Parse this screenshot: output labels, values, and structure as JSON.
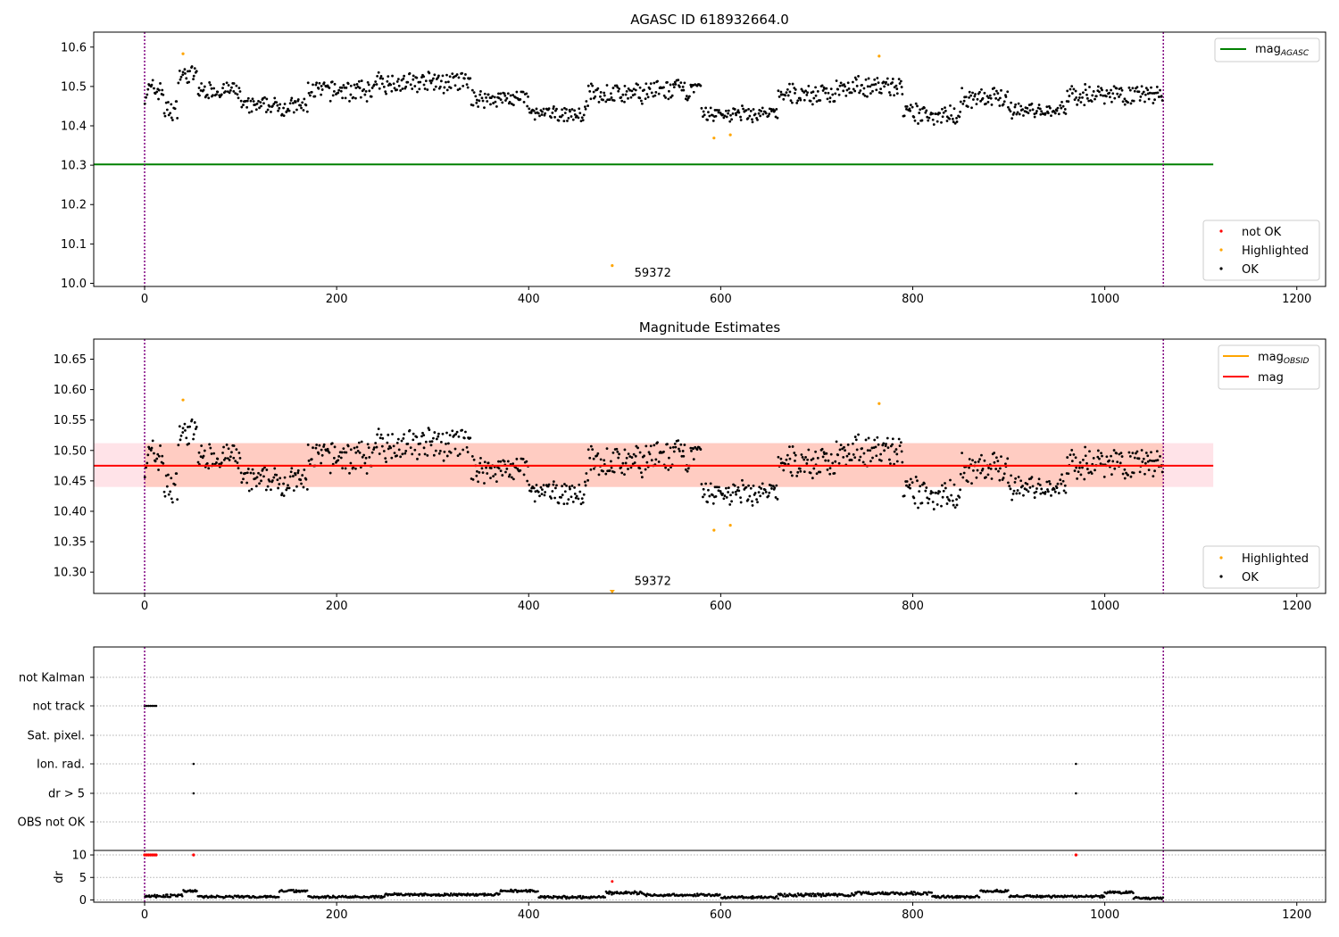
{
  "colors": {
    "ok": "#000000",
    "highlighted": "#ffa500",
    "not_ok": "#ff0000",
    "mag_agasc": "#008000",
    "mag_obsid": "#ffa500",
    "mag": "#ff0000",
    "band_outer": "#ffc0cb",
    "band_inner": "#ffa07a",
    "vline": "#800080",
    "grid": "#b0b0b0"
  },
  "chart_data": [
    {
      "type": "scatter",
      "title": "AGASC ID 618932664.0",
      "xlim": [
        -53,
        1230
      ],
      "ylim": [
        9.992,
        10.638
      ],
      "xticks": [
        0,
        200,
        400,
        600,
        800,
        1000,
        1200
      ],
      "yticks": [
        10.0,
        10.1,
        10.2,
        10.3,
        10.4,
        10.5,
        10.6
      ],
      "ytick_labels": [
        "10.0",
        "10.1",
        "10.2",
        "10.3",
        "10.4",
        "10.5",
        "10.6"
      ],
      "obsid_boundaries": [
        0,
        1061
      ],
      "mag_agasc": {
        "label": "mag",
        "subscript": "AGASC",
        "value": 10.302,
        "x_range": [
          -53,
          1113
        ]
      },
      "legend_top": {
        "position": "upper right",
        "entries": [
          {
            "label": "mag",
            "subscript": "AGASC",
            "kind": "line",
            "color": "#008000"
          }
        ]
      },
      "legend_bottom": {
        "position": "lower right",
        "entries": [
          {
            "label": "not OK",
            "kind": "dot",
            "color": "#ff0000"
          },
          {
            "label": "Highlighted",
            "kind": "dot",
            "color": "#ffa500"
          },
          {
            "label": "OK",
            "kind": "dot",
            "color": "#000000"
          }
        ]
      },
      "annotation": {
        "text": "59372",
        "x": 510,
        "y": 10.017
      },
      "highlighted_points": [
        [
          40,
          10.583
        ],
        [
          593,
          10.369
        ],
        [
          610,
          10.377
        ],
        [
          765,
          10.577
        ],
        [
          487,
          10.045
        ]
      ],
      "ok_segments": [
        {
          "x": [
            0,
            20
          ],
          "center": 10.49,
          "spread": 0.035
        },
        {
          "x": [
            20,
            35
          ],
          "center": 10.44,
          "spread": 0.03
        },
        {
          "x": [
            35,
            55
          ],
          "center": 10.53,
          "spread": 0.025
        },
        {
          "x": [
            55,
            100
          ],
          "center": 10.49,
          "spread": 0.025
        },
        {
          "x": [
            100,
            170
          ],
          "center": 10.45,
          "spread": 0.025
        },
        {
          "x": [
            170,
            240
          ],
          "center": 10.49,
          "spread": 0.03
        },
        {
          "x": [
            240,
            340
          ],
          "center": 10.51,
          "spread": 0.03
        },
        {
          "x": [
            340,
            400
          ],
          "center": 10.47,
          "spread": 0.025
        },
        {
          "x": [
            400,
            460
          ],
          "center": 10.43,
          "spread": 0.022
        },
        {
          "x": [
            460,
            520
          ],
          "center": 10.48,
          "spread": 0.03
        },
        {
          "x": [
            520,
            580
          ],
          "center": 10.49,
          "spread": 0.03
        },
        {
          "x": [
            580,
            660
          ],
          "center": 10.43,
          "spread": 0.022
        },
        {
          "x": [
            660,
            720
          ],
          "center": 10.48,
          "spread": 0.03
        },
        {
          "x": [
            720,
            790
          ],
          "center": 10.5,
          "spread": 0.03
        },
        {
          "x": [
            790,
            850
          ],
          "center": 10.43,
          "spread": 0.03
        },
        {
          "x": [
            850,
            900
          ],
          "center": 10.47,
          "spread": 0.03
        },
        {
          "x": [
            900,
            960
          ],
          "center": 10.44,
          "spread": 0.022
        },
        {
          "x": [
            960,
            1061
          ],
          "center": 10.48,
          "spread": 0.03
        }
      ]
    },
    {
      "type": "scatter",
      "title": "Magnitude Estimates",
      "xlim": [
        -53,
        1230
      ],
      "ylim": [
        10.265,
        10.683
      ],
      "xticks": [
        0,
        200,
        400,
        600,
        800,
        1000,
        1200
      ],
      "yticks": [
        10.3,
        10.35,
        10.4,
        10.45,
        10.5,
        10.55,
        10.6,
        10.65
      ],
      "ytick_labels": [
        "10.30",
        "10.35",
        "10.40",
        "10.45",
        "10.50",
        "10.55",
        "10.60",
        "10.65"
      ],
      "obsid_boundaries": [
        0,
        1061
      ],
      "mag": {
        "label": "mag",
        "value": 10.475,
        "band": [
          10.44,
          10.512
        ],
        "x_range": [
          -53,
          1113
        ]
      },
      "mag_obsid": {
        "label": "mag",
        "subscript": "OBSID",
        "value": 10.475,
        "band": [
          10.44,
          10.512
        ],
        "x_range": [
          0,
          1061
        ]
      },
      "legend_top": {
        "position": "upper right",
        "entries": [
          {
            "label": "mag",
            "subscript": "OBSID",
            "kind": "line",
            "color": "#ffa500"
          },
          {
            "label": "mag",
            "kind": "line",
            "color": "#ff0000"
          }
        ]
      },
      "legend_bottom": {
        "position": "lower right",
        "entries": [
          {
            "label": "Highlighted",
            "kind": "dot",
            "color": "#ffa500"
          },
          {
            "label": "OK",
            "kind": "dot",
            "color": "#000000"
          }
        ]
      },
      "annotation": {
        "text": "59372",
        "x": 510,
        "y": 10.279
      },
      "highlighted_points": [
        [
          40,
          10.583
        ],
        [
          593,
          10.369
        ],
        [
          610,
          10.377
        ],
        [
          765,
          10.577
        ]
      ],
      "clipped_point": [
        487,
        10.265
      ]
    },
    {
      "type": "scatter",
      "title": "",
      "xlim": [
        -53,
        1230
      ],
      "xticks": [
        0,
        200,
        400,
        600,
        800,
        1000,
        1200
      ],
      "obsid_boundaries": [
        0,
        1061
      ],
      "flag_rows": [
        "not Kalman",
        "not track",
        "Sat. pixel.",
        "Ion. rad.",
        "dr > 5",
        "OBS not OK"
      ],
      "flags": {
        "not track": [
          0,
          2,
          4,
          6,
          8,
          10,
          12
        ],
        "Ion. rad.": [
          51,
          970
        ],
        "dr > 5": [
          51,
          970
        ]
      },
      "dr_axis": {
        "label": "dr",
        "ylim": [
          -0.5,
          11
        ],
        "yticks": [
          0,
          5,
          10
        ],
        "ytick_labels": [
          "0",
          "5",
          "10"
        ]
      },
      "dr_high_points": [
        [
          0,
          10
        ],
        [
          2,
          10
        ],
        [
          4,
          10
        ],
        [
          6,
          10
        ],
        [
          8,
          10
        ],
        [
          10,
          10
        ],
        [
          12,
          10
        ],
        [
          51,
          10
        ],
        [
          970,
          10
        ]
      ],
      "dr_outlier_points": [
        [
          487,
          4.1
        ]
      ],
      "dr_segments": [
        {
          "x": [
            0,
            40
          ],
          "center": 0.9,
          "spread": 0.4
        },
        {
          "x": [
            40,
            55
          ],
          "center": 2.0,
          "spread": 0.3
        },
        {
          "x": [
            55,
            140
          ],
          "center": 0.7,
          "spread": 0.3
        },
        {
          "x": [
            140,
            170
          ],
          "center": 2.0,
          "spread": 0.3
        },
        {
          "x": [
            170,
            250
          ],
          "center": 0.7,
          "spread": 0.3
        },
        {
          "x": [
            250,
            370
          ],
          "center": 1.2,
          "spread": 0.3
        },
        {
          "x": [
            370,
            410
          ],
          "center": 2.0,
          "spread": 0.3
        },
        {
          "x": [
            410,
            480
          ],
          "center": 0.6,
          "spread": 0.3
        },
        {
          "x": [
            480,
            520
          ],
          "center": 1.6,
          "spread": 0.4
        },
        {
          "x": [
            520,
            600
          ],
          "center": 1.1,
          "spread": 0.3
        },
        {
          "x": [
            600,
            660
          ],
          "center": 0.6,
          "spread": 0.3
        },
        {
          "x": [
            660,
            740
          ],
          "center": 1.1,
          "spread": 0.4
        },
        {
          "x": [
            740,
            820
          ],
          "center": 1.5,
          "spread": 0.4
        },
        {
          "x": [
            820,
            870
          ],
          "center": 0.7,
          "spread": 0.3
        },
        {
          "x": [
            870,
            900
          ],
          "center": 2.0,
          "spread": 0.3
        },
        {
          "x": [
            900,
            1000
          ],
          "center": 0.8,
          "spread": 0.3
        },
        {
          "x": [
            1000,
            1030
          ],
          "center": 1.7,
          "spread": 0.3
        },
        {
          "x": [
            1030,
            1061
          ],
          "center": 0.4,
          "spread": 0.3
        }
      ]
    }
  ]
}
